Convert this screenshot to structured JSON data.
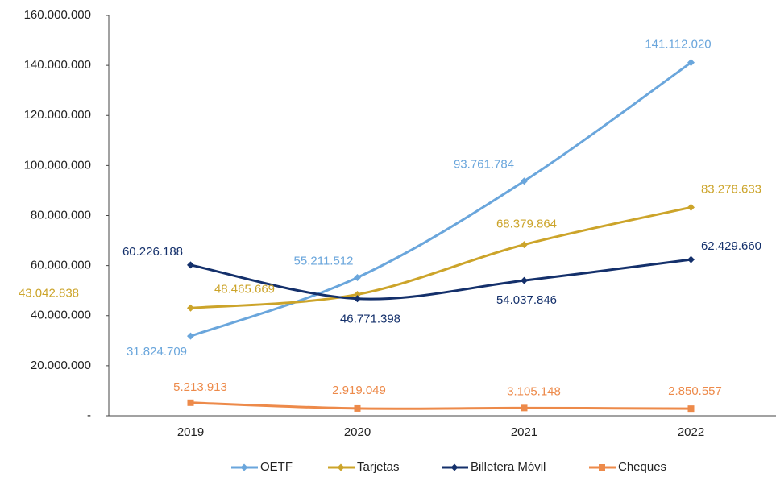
{
  "chart_data": {
    "type": "line",
    "categories": [
      "2019",
      "2020",
      "2021",
      "2022"
    ],
    "series": [
      {
        "name": "OETF",
        "color": "#6aa6dc",
        "marker": "diamond",
        "values": [
          31824709,
          55211512,
          93761784,
          141112020
        ],
        "value_labels": [
          "31.824.709",
          "55.211.512",
          "93.761.784",
          "141.112.020"
        ]
      },
      {
        "name": "Tarjetas",
        "color": "#cca42a",
        "marker": "diamond",
        "values": [
          43042838,
          48465669,
          68379864,
          83278633
        ],
        "value_labels": [
          "43.042.838",
          "48.465.669",
          "68.379.864",
          "83.278.633"
        ]
      },
      {
        "name": "Billetera Móvil",
        "color": "#14306b",
        "marker": "diamond",
        "values": [
          60226188,
          46771398,
          54037846,
          62429660
        ],
        "value_labels": [
          "60.226.188",
          "46.771.398",
          "54.037.846",
          "62.429.660"
        ]
      },
      {
        "name": "Cheques",
        "color": "#ed8a4a",
        "marker": "square",
        "values": [
          5213913,
          2919049,
          3105148,
          2850557
        ],
        "value_labels": [
          "5.213.913",
          "2.919.049",
          "3.105.148",
          "2.850.557"
        ]
      }
    ],
    "ylim": [
      0,
      160000000
    ],
    "yticks": [
      {
        "value": 0,
        "label": "-"
      },
      {
        "value": 20000000,
        "label": "20.000.000"
      },
      {
        "value": 40000000,
        "label": "40.000.000"
      },
      {
        "value": 60000000,
        "label": "60.000.000"
      },
      {
        "value": 80000000,
        "label": "80.000.000"
      },
      {
        "value": 100000000,
        "label": "100.000.000"
      },
      {
        "value": 120000000,
        "label": "120.000.000"
      },
      {
        "value": 140000000,
        "label": "140.000.000"
      },
      {
        "value": 160000000,
        "label": "160.000.000"
      }
    ],
    "grid": false,
    "smooth": true,
    "legend": "bottom"
  }
}
